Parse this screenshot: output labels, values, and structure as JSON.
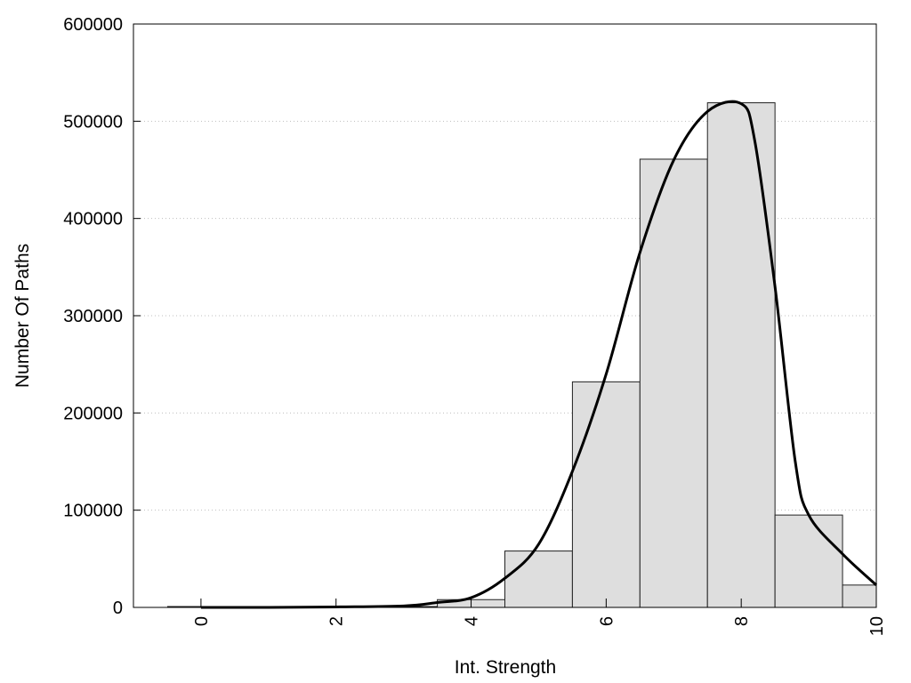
{
  "chart_data": {
    "type": "bar",
    "title": "",
    "xlabel": "Int. Strength",
    "ylabel": "Number Of Paths",
    "xlim": [
      -1,
      10
    ],
    "ylim": [
      0,
      600000
    ],
    "x_ticks": [
      "0",
      "2",
      "4",
      "6",
      "8",
      "10"
    ],
    "y_ticks": [
      "0",
      "100000",
      "200000",
      "300000",
      "400000",
      "500000",
      "600000"
    ],
    "grid": "horizontal dotted",
    "legend": "none",
    "bins": [
      {
        "from": -0.5,
        "to": 0.5,
        "value": 0
      },
      {
        "from": 0.5,
        "to": 1.5,
        "value": 0
      },
      {
        "from": 1.5,
        "to": 2.5,
        "value": 0
      },
      {
        "from": 2.5,
        "to": 3.5,
        "value": 0
      },
      {
        "from": 3.5,
        "to": 4.5,
        "value": 8000
      },
      {
        "from": 4.5,
        "to": 5.5,
        "value": 58000
      },
      {
        "from": 5.5,
        "to": 6.5,
        "value": 232000
      },
      {
        "from": 6.5,
        "to": 7.5,
        "value": 461000
      },
      {
        "from": 7.5,
        "to": 8.5,
        "value": 519000
      },
      {
        "from": 8.5,
        "to": 9.5,
        "value": 95000
      },
      {
        "from": 9.5,
        "to": 10,
        "value": 23000
      }
    ],
    "curve": {
      "x": [
        0,
        1,
        2,
        3,
        3.5,
        4,
        4.5,
        5,
        5.5,
        6,
        6.5,
        7,
        7.5,
        8,
        8.2,
        8.5,
        8.8,
        9,
        9.5,
        10
      ],
      "y": [
        0,
        0,
        500,
        1500,
        5000,
        10000,
        30000,
        65000,
        140000,
        240000,
        365000,
        460000,
        510000,
        518000,
        480000,
        330000,
        150000,
        95000,
        55000,
        23000
      ]
    },
    "colors": {
      "bar_fill": "#dedede",
      "bar_stroke": "#222222",
      "curve": "#000000",
      "grid": "#bfbfbf"
    }
  }
}
